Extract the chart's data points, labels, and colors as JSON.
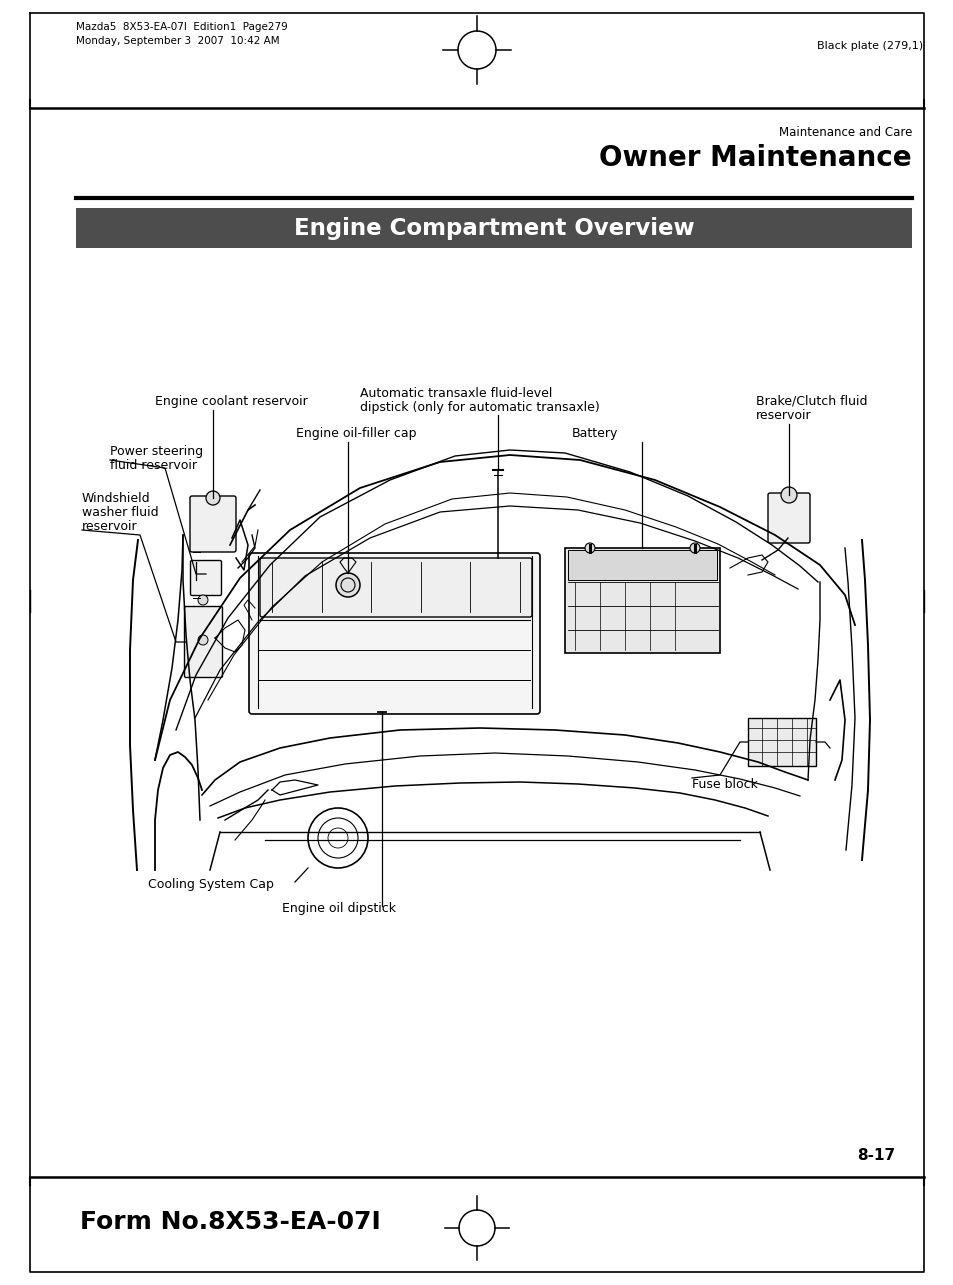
{
  "bg_color": "#ffffff",
  "page_title_small": "Maintenance and Care",
  "page_title_large": "Owner Maintenance",
  "section_title": "Engine Compartment Overview",
  "section_title_bg": "#4d4d4d",
  "section_title_color": "#ffffff",
  "header_text_line1": "Mazda5  8X53-EA-07I  Edition1  Page279",
  "header_text_line2": "Monday, September 3  2007  10:42 AM",
  "header_right": "Black plate (279,1)",
  "footer_text": "Form No.8X53-EA-07I",
  "page_number": "8-17",
  "font_label": 9.0,
  "font_section": 16.5,
  "font_page_large": 20,
  "font_page_small": 8.5,
  "font_footer": 18,
  "font_header": 7.5,
  "lc": "#000000",
  "lw_main": 1.3,
  "lw_thin": 0.8,
  "lw_leader": 0.9
}
